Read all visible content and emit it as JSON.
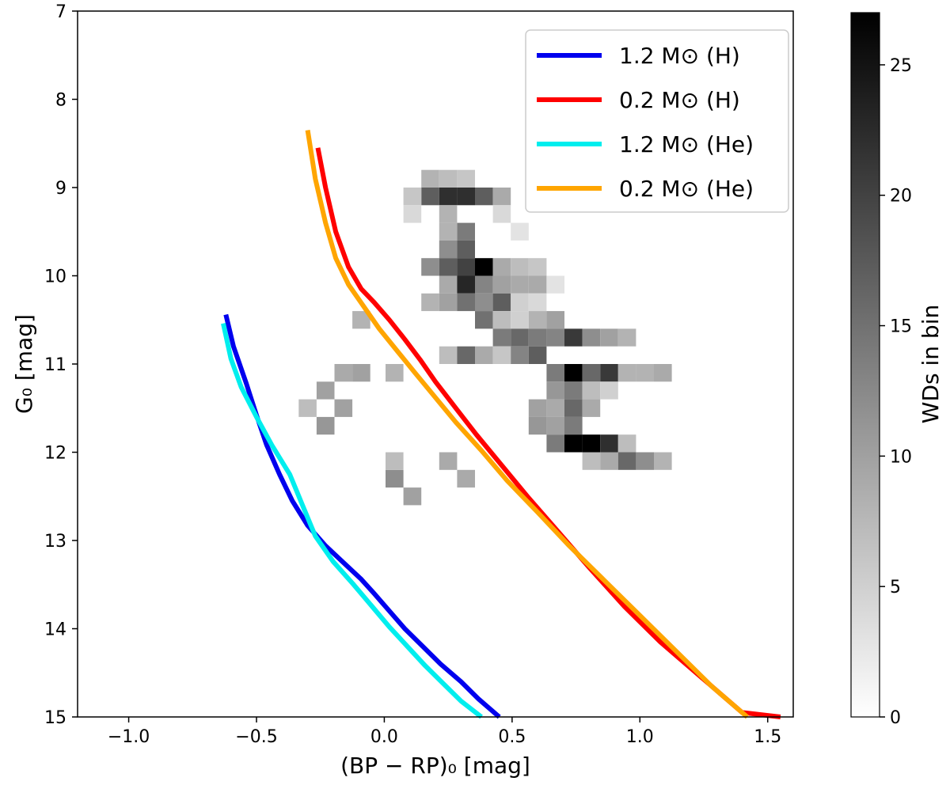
{
  "chart_data": {
    "type": "heatmap",
    "title": "",
    "xlabel": "(BP − RP)₀ [mag]",
    "ylabel": "G₀ [mag]",
    "xlim": [
      -1.2,
      1.6
    ],
    "ylim": [
      15,
      7
    ],
    "y_inverted": true,
    "x_ticks": [
      -1.0,
      -0.5,
      0.0,
      0.5,
      1.0,
      1.5
    ],
    "x_tick_labels": [
      "−1.0",
      "−0.5",
      "0.0",
      "0.5",
      "1.0",
      "1.5"
    ],
    "y_ticks": [
      7,
      8,
      9,
      10,
      11,
      12,
      13,
      14,
      15
    ],
    "y_tick_labels": [
      "7",
      "8",
      "9",
      "10",
      "11",
      "12",
      "13",
      "14",
      "15"
    ],
    "grid": false,
    "colorbar": {
      "label": "WDs in bin",
      "range": [
        0,
        27
      ],
      "ticks": [
        0,
        5,
        10,
        15,
        20,
        25
      ],
      "tick_labels": [
        "0",
        "5",
        "10",
        "15",
        "20",
        "25"
      ],
      "colormap": "Greys"
    },
    "bins": {
      "x_edges_start": -1.2,
      "x_bin_width": 0.07,
      "y_edges_start": 7,
      "y_bin_width": 0.2,
      "cells": [
        [
          0.18,
          9.1,
          17
        ],
        [
          0.25,
          9.1,
          22
        ],
        [
          0.32,
          9.1,
          22
        ],
        [
          0.39,
          9.1,
          17
        ],
        [
          0.18,
          8.9,
          8
        ],
        [
          0.25,
          8.9,
          7
        ],
        [
          0.32,
          8.9,
          6
        ],
        [
          0.11,
          9.1,
          6
        ],
        [
          0.46,
          9.1,
          9
        ],
        [
          0.25,
          9.3,
          8
        ],
        [
          0.11,
          9.3,
          4
        ],
        [
          0.46,
          9.3,
          4
        ],
        [
          0.32,
          9.5,
          14
        ],
        [
          0.25,
          9.5,
          8
        ],
        [
          0.53,
          9.5,
          3
        ],
        [
          0.25,
          9.7,
          12
        ],
        [
          0.32,
          9.7,
          17
        ],
        [
          0.18,
          9.9,
          12
        ],
        [
          0.25,
          9.9,
          17
        ],
        [
          0.32,
          9.9,
          20
        ],
        [
          0.39,
          9.9,
          27
        ],
        [
          0.46,
          9.9,
          9
        ],
        [
          0.53,
          9.9,
          7
        ],
        [
          0.6,
          9.9,
          6
        ],
        [
          0.25,
          10.1,
          9
        ],
        [
          0.32,
          10.1,
          23
        ],
        [
          0.39,
          10.1,
          13
        ],
        [
          0.46,
          10.1,
          10
        ],
        [
          0.53,
          10.1,
          9
        ],
        [
          0.6,
          10.1,
          9
        ],
        [
          0.67,
          10.1,
          3
        ],
        [
          0.18,
          10.3,
          8
        ],
        [
          0.25,
          10.3,
          10
        ],
        [
          0.32,
          10.3,
          15
        ],
        [
          0.39,
          10.3,
          12
        ],
        [
          0.46,
          10.3,
          17
        ],
        [
          0.53,
          10.3,
          5
        ],
        [
          0.6,
          10.3,
          4
        ],
        [
          0.39,
          10.5,
          15
        ],
        [
          0.46,
          10.5,
          7
        ],
        [
          0.53,
          10.5,
          5
        ],
        [
          0.6,
          10.5,
          8
        ],
        [
          0.67,
          10.5,
          10
        ],
        [
          -0.09,
          10.5,
          8
        ],
        [
          0.46,
          10.7,
          14
        ],
        [
          0.53,
          10.7,
          16
        ],
        [
          0.6,
          10.7,
          14
        ],
        [
          0.67,
          10.7,
          13
        ],
        [
          0.74,
          10.7,
          21
        ],
        [
          0.81,
          10.7,
          12
        ],
        [
          0.88,
          10.7,
          10
        ],
        [
          0.95,
          10.7,
          8
        ],
        [
          0.25,
          10.9,
          7
        ],
        [
          0.32,
          10.9,
          16
        ],
        [
          0.39,
          10.9,
          9
        ],
        [
          0.46,
          10.9,
          6
        ],
        [
          0.53,
          10.9,
          13
        ],
        [
          0.6,
          10.9,
          17
        ],
        [
          0.67,
          11.1,
          14
        ],
        [
          0.74,
          11.1,
          27
        ],
        [
          0.81,
          11.1,
          16
        ],
        [
          0.88,
          11.1,
          21
        ],
        [
          0.95,
          11.1,
          8
        ],
        [
          1.02,
          11.1,
          8
        ],
        [
          1.09,
          11.1,
          9
        ],
        [
          0.67,
          11.3,
          11
        ],
        [
          0.74,
          11.3,
          14
        ],
        [
          0.81,
          11.3,
          7
        ],
        [
          0.88,
          11.3,
          5
        ],
        [
          0.6,
          11.5,
          10
        ],
        [
          0.67,
          11.5,
          9
        ],
        [
          0.74,
          11.5,
          16
        ],
        [
          0.81,
          11.5,
          9
        ],
        [
          0.6,
          11.7,
          11
        ],
        [
          0.67,
          11.7,
          10
        ],
        [
          0.74,
          11.7,
          14
        ],
        [
          0.67,
          11.9,
          14
        ],
        [
          0.74,
          11.9,
          27
        ],
        [
          0.81,
          11.9,
          27
        ],
        [
          0.88,
          11.9,
          22
        ],
        [
          0.95,
          11.9,
          7
        ],
        [
          0.81,
          12.1,
          7
        ],
        [
          0.88,
          12.1,
          9
        ],
        [
          0.95,
          12.1,
          16
        ],
        [
          1.02,
          12.1,
          12
        ],
        [
          1.09,
          12.1,
          8
        ],
        [
          -0.16,
          11.1,
          9
        ],
        [
          -0.09,
          11.1,
          10
        ],
        [
          0.04,
          11.1,
          8
        ],
        [
          -0.23,
          11.3,
          10
        ],
        [
          -0.16,
          11.5,
          10
        ],
        [
          -0.23,
          11.7,
          11
        ],
        [
          -0.3,
          11.5,
          7
        ],
        [
          0.04,
          12.3,
          12
        ],
        [
          0.11,
          12.5,
          10
        ],
        [
          0.25,
          12.1,
          9
        ],
        [
          0.32,
          12.3,
          9
        ],
        [
          0.04,
          12.1,
          7
        ]
      ]
    },
    "series": [
      {
        "name": "1.2 M⊙ (H)",
        "color": "#0000ee",
        "x": [
          -0.62,
          -0.59,
          -0.54,
          -0.5,
          -0.46,
          -0.41,
          -0.36,
          -0.3,
          -0.23,
          -0.16,
          -0.09,
          -0.04,
          0.02,
          0.08,
          0.15,
          0.22,
          0.3,
          0.37,
          0.45
        ],
        "y": [
          10.44,
          10.8,
          11.22,
          11.58,
          11.92,
          12.25,
          12.55,
          12.83,
          13.06,
          13.25,
          13.44,
          13.6,
          13.8,
          14.0,
          14.2,
          14.4,
          14.6,
          14.8,
          15.0
        ]
      },
      {
        "name": "0.2 M⊙ (H)",
        "color": "#ff0000",
        "x": [
          -0.26,
          -0.23,
          -0.19,
          -0.14,
          -0.09,
          -0.04,
          0.02,
          0.08,
          0.14,
          0.2,
          0.28,
          0.36,
          0.46,
          0.56,
          0.68,
          0.8,
          0.94,
          1.08,
          1.24,
          1.4,
          1.55
        ],
        "y": [
          8.55,
          9.0,
          9.5,
          9.9,
          10.15,
          10.3,
          10.5,
          10.72,
          10.95,
          11.2,
          11.5,
          11.8,
          12.15,
          12.5,
          12.9,
          13.3,
          13.75,
          14.15,
          14.55,
          14.95,
          15.0
        ]
      },
      {
        "name": "1.2 M⊙ (He)",
        "color": "#00eeee",
        "x": [
          -0.63,
          -0.6,
          -0.56,
          -0.5,
          -0.44,
          -0.37,
          -0.32,
          -0.27,
          -0.2,
          -0.12,
          -0.05,
          0.02,
          0.09,
          0.16,
          0.23,
          0.3,
          0.38
        ],
        "y": [
          10.54,
          10.94,
          11.26,
          11.6,
          11.92,
          12.25,
          12.6,
          12.95,
          13.24,
          13.5,
          13.74,
          13.98,
          14.2,
          14.42,
          14.62,
          14.82,
          15.0
        ]
      },
      {
        "name": "0.2 M⊙ (He)",
        "color": "#ffa500",
        "x": [
          -0.3,
          -0.27,
          -0.23,
          -0.19,
          -0.14,
          -0.08,
          -0.02,
          0.05,
          0.12,
          0.2,
          0.28,
          0.38,
          0.48,
          0.6,
          0.72,
          0.86,
          1.0,
          1.14,
          1.28,
          1.42
        ],
        "y": [
          8.35,
          8.9,
          9.4,
          9.8,
          10.1,
          10.35,
          10.6,
          10.85,
          11.1,
          11.38,
          11.66,
          11.98,
          12.32,
          12.68,
          13.05,
          13.45,
          13.85,
          14.25,
          14.65,
          15.0
        ]
      }
    ],
    "legend": {
      "placement": "top-right",
      "entries": [
        "1.2 M⊙ (H)",
        "0.2 M⊙ (H)",
        "1.2 M⊙ (He)",
        "0.2 M⊙ (He)"
      ]
    }
  }
}
